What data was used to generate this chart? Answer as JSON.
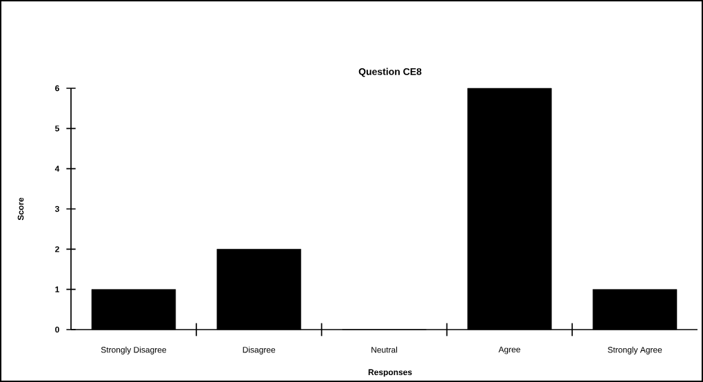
{
  "chart_data": {
    "type": "bar",
    "title": "Question CE8",
    "xlabel": "Responses",
    "ylabel": "Score",
    "categories": [
      "Strongly Disagree",
      "Disagree",
      "Neutral",
      "Agree",
      "Strongly Agree"
    ],
    "values": [
      1,
      2,
      0,
      6,
      1
    ],
    "color": "#000000",
    "ylim": [
      0,
      6
    ],
    "yticks": [
      0,
      1,
      2,
      3,
      4,
      5,
      6
    ],
    "grid": false,
    "legend": false
  }
}
